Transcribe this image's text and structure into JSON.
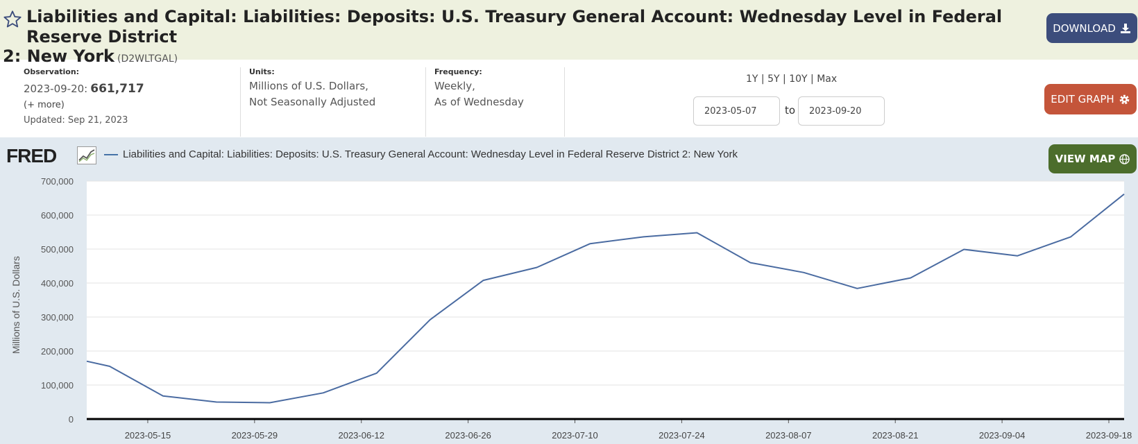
{
  "header": {
    "title_line1": "Liabilities and Capital: Liabilities: Deposits: U.S. Treasury General Account: Wednesday Level in Federal Reserve District",
    "title_line2": "2: New York",
    "series_id": "(D2WLTGAL)",
    "download_label": "DOWNLOAD"
  },
  "meta": {
    "observation_label": "Observation:",
    "observation_date": "2023-09-20:",
    "observation_value": "661,717",
    "more_label": "(+ more)",
    "updated": "Updated: Sep 21, 2023",
    "units_label": "Units:",
    "units_line1": "Millions of U.S. Dollars,",
    "units_line2": "Not Seasonally Adjusted",
    "frequency_label": "Frequency:",
    "frequency_line1": "Weekly,",
    "frequency_line2": "As of Wednesday"
  },
  "controls": {
    "range_1y": "1Y",
    "range_5y": "5Y",
    "range_10y": "10Y",
    "range_max": "Max",
    "separator": "|",
    "start_date": "2023-05-07",
    "end_date": "2023-09-20",
    "to_label": "to",
    "edit_graph_label": "EDIT GRAPH",
    "view_map_label": "VIEW MAP"
  },
  "branding": {
    "logo": "FRED"
  },
  "colors": {
    "line": "#4a6ba1",
    "header_bg": "#eef1df",
    "chart_bg": "#e1e9f0",
    "download_btn": "#3c4d7c",
    "edit_btn": "#c4553a",
    "map_btn": "#4c6d2c"
  },
  "chart_data": {
    "type": "line",
    "legend": "Liabilities and Capital: Liabilities: Deposits: U.S. Treasury General Account: Wednesday Level in Federal Reserve District 2: New York",
    "ylabel": "Millions of U.S. Dollars",
    "ylim": [
      0,
      700000
    ],
    "yticks": [
      0,
      100000,
      200000,
      300000,
      400000,
      500000,
      600000,
      700000
    ],
    "ytick_labels": [
      "0",
      "100,000",
      "200,000",
      "300,000",
      "400,000",
      "500,000",
      "600,000",
      "700,000"
    ],
    "xlim": [
      "2023-05-07",
      "2023-09-20"
    ],
    "xtick_labels": [
      "2023-05-15",
      "2023-05-29",
      "2023-06-12",
      "2023-06-26",
      "2023-07-10",
      "2023-07-24",
      "2023-08-07",
      "2023-08-21",
      "2023-09-04",
      "2023-09-18"
    ],
    "grid": true,
    "series": [
      {
        "name": "Liabilities and Capital: Liabilities: Deposits: U.S. Treasury General Account: Wednesday Level in Federal Reserve District 2: New York",
        "x": [
          "2023-05-07",
          "2023-05-10",
          "2023-05-17",
          "2023-05-24",
          "2023-05-31",
          "2023-06-07",
          "2023-06-14",
          "2023-06-21",
          "2023-06-28",
          "2023-07-05",
          "2023-07-12",
          "2023-07-19",
          "2023-07-26",
          "2023-08-02",
          "2023-08-09",
          "2023-08-16",
          "2023-08-23",
          "2023-08-30",
          "2023-09-06",
          "2023-09-13",
          "2023-09-20"
        ],
        "y": [
          170000,
          155000,
          68000,
          50000,
          48000,
          77000,
          135000,
          292000,
          408000,
          446000,
          516000,
          536000,
          548000,
          460000,
          431000,
          384000,
          415000,
          499000,
          480000,
          536000,
          661717
        ]
      }
    ]
  }
}
